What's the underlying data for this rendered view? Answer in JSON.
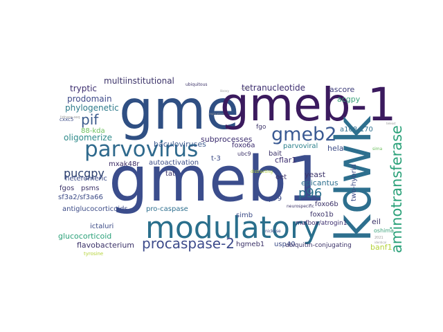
{
  "word_cloud": {
    "words": [
      {
        "text": "gme",
        "color": "#2f4f83"
      },
      {
        "text": "gmeb-1",
        "color": "#3b1a5e"
      },
      {
        "text": "kdwk",
        "color": "#2d6f8e"
      },
      {
        "text": "gmeb1",
        "color": "#3b4d8c"
      },
      {
        "text": "modulatory",
        "color": "#2a6f8c"
      },
      {
        "text": "parvovirus",
        "color": "#2f6a8d"
      },
      {
        "text": "gmeb2",
        "color": "#3a5a93"
      },
      {
        "text": "aminotransferase",
        "color": "#2ba179"
      },
      {
        "text": "procaspase-2",
        "color": "#3d4b8b"
      },
      {
        "text": "pif",
        "color": "#3a5a8c"
      },
      {
        "text": "pucgpy",
        "color": "#2b3f6e"
      },
      {
        "text": "p96",
        "color": "#2a6f8c"
      },
      {
        "text": "tetranucleotide",
        "color": "#3b2c6e"
      },
      {
        "text": "multiinstitutional",
        "color": "#3b3268"
      },
      {
        "text": "tryptic",
        "color": "#3b2c6e"
      },
      {
        "text": "prodomain",
        "color": "#3e4a89"
      },
      {
        "text": "phylogenetic",
        "color": "#2d7a8a"
      },
      {
        "text": "lidnase-seq",
        "color": "#999999"
      },
      {
        "text": "88-kda",
        "color": "#6abf5b"
      },
      {
        "text": "oligomerize",
        "color": "#2e8a8a"
      },
      {
        "text": "baculoviruses",
        "color": "#3c5a8f"
      },
      {
        "text": "subprocesses",
        "color": "#3b2c6e"
      },
      {
        "text": "autoactivation",
        "color": "#3c4c86"
      },
      {
        "text": "mxak48r",
        "color": "#3a2a63"
      },
      {
        "text": "t-3",
        "color": "#3b4a86"
      },
      {
        "text": "tat",
        "color": "#3b3268"
      },
      {
        "text": "foxo6a",
        "color": "#3b2c6e"
      },
      {
        "text": "ubc9",
        "color": "#3b3268"
      },
      {
        "text": "bait",
        "color": "#3b3268"
      },
      {
        "text": "cflar1",
        "color": "#3b2c6e"
      },
      {
        "text": "parvoviral",
        "color": "#2a7f8a"
      },
      {
        "text": "fgo",
        "color": "#3b3268"
      },
      {
        "text": "a168-170",
        "color": "#2e6f8e"
      },
      {
        "text": "ascore",
        "color": "#3d3d7a"
      },
      {
        "text": "acgpy",
        "color": "#3aa17a"
      },
      {
        "text": "hela",
        "color": "#3b4a86"
      },
      {
        "text": "two-hybrid",
        "color": "#3b4a86"
      },
      {
        "text": "yeast",
        "color": "#3b3268"
      },
      {
        "text": "epicantus",
        "color": "#2e6f8e"
      },
      {
        "text": "oet",
        "color": "#3b3268"
      },
      {
        "text": "foxo6b",
        "color": "#3b3268"
      },
      {
        "text": "p79",
        "color": "#3b4a86"
      },
      {
        "text": "simb",
        "color": "#3b4a86"
      },
      {
        "text": "foxo1b",
        "color": "#3b3268"
      },
      {
        "text": "mafbox/atrogin1",
        "color": "#3b2c6e"
      },
      {
        "text": "usp40",
        "color": "#3b4a86"
      },
      {
        "text": "hgmeb1",
        "color": "#3b3268"
      },
      {
        "text": "ubiquitin-conjugating",
        "color": "#3b3268"
      },
      {
        "text": "banf1",
        "color": "#b5d33a"
      },
      {
        "text": "eil",
        "color": "#3b3268"
      },
      {
        "text": "oshima",
        "color": "#3aa17a"
      },
      {
        "text": "heteromeric",
        "color": "#3b4a86"
      },
      {
        "text": "fgos",
        "color": "#3b3268"
      },
      {
        "text": "psms",
        "color": "#3b3268"
      },
      {
        "text": "sf3a2/sf3a66",
        "color": "#3b4a86"
      },
      {
        "text": "antiglucocorticoids",
        "color": "#3b4a86"
      },
      {
        "text": "ictaluri",
        "color": "#3b4a86"
      },
      {
        "text": "glucocorticoid",
        "color": "#2ba179"
      },
      {
        "text": "flavobacterium",
        "color": "#3b3268"
      },
      {
        "text": "pro-caspase",
        "color": "#2e6f8e"
      },
      {
        "text": "tyrosine",
        "color": "#b5d33a"
      },
      {
        "text": "ubiquitous",
        "color": "#3b3268"
      },
      {
        "text": "neurospecific",
        "color": "#3b3268"
      },
      {
        "text": "nickase",
        "color": "#3b4a86"
      },
      {
        "text": "distracting",
        "color": "#b5d33a"
      },
      {
        "text": "cxxc5",
        "color": "#3b4a86"
      },
      {
        "text": "replication",
        "color": "#999999"
      },
      {
        "text": "sima",
        "color": "#6abf5b"
      },
      {
        "text": "called",
        "color": "#999999"
      },
      {
        "text": "library",
        "color": "#999999"
      },
      {
        "text": "teleost",
        "color": "#999999"
      },
      {
        "text": "2021",
        "color": "#999999"
      },
      {
        "text": "identical",
        "color": "#999999"
      }
    ]
  }
}
